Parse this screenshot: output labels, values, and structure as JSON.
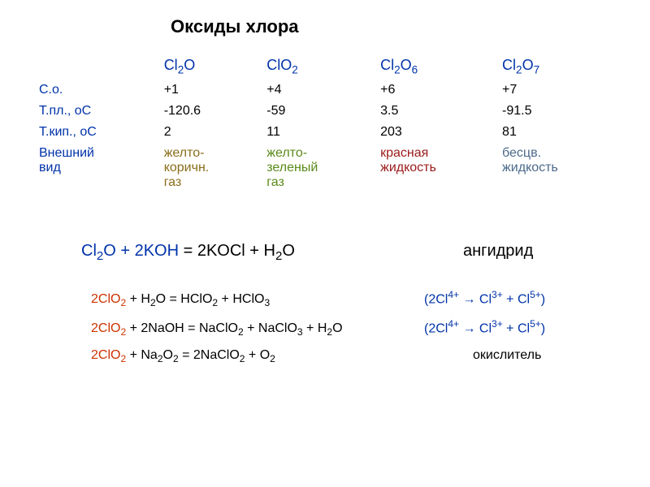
{
  "title": "Оксиды хлора",
  "table": {
    "headers": [
      "Cl2O",
      "ClO2",
      "Cl2O6",
      "Cl2O7"
    ],
    "rows": [
      {
        "label": "С.о.",
        "cells": [
          "+1",
          "+4",
          "+6",
          "+7"
        ],
        "colors": [
          "#000",
          "#000",
          "#000",
          "#000"
        ]
      },
      {
        "label": "Т.пл., оС",
        "cells": [
          "-120.6",
          "-59",
          "3.5",
          "-91.5"
        ],
        "colors": [
          "#000",
          "#000",
          "#000",
          "#000"
        ]
      },
      {
        "label": "Т.кип., оС",
        "cells": [
          "2",
          "11",
          "203",
          "81"
        ],
        "colors": [
          "#000",
          "#000",
          "#000",
          "#000"
        ]
      },
      {
        "label": "Внешний\n   вид",
        "cells": [
          "желто-\nкоричн.\nгаз",
          "желто-\nзеленый\n   газ",
          "красная\nжидкость",
          "бесцв.\nжидкость"
        ],
        "colors": [
          "#8a6d1a",
          "#5a8a1a",
          "#9a1a1a",
          "#4a6a8a"
        ]
      }
    ]
  },
  "equations": [
    {
      "lhs_html": "Cl<sub>2</sub>O + 2KOH",
      "rhs_html": "= 2KOCl + H<sub>2</sub>O",
      "label": "ангидрид",
      "redox_html": "",
      "lhs_color": "#0033aa",
      "big": true
    },
    {
      "lhs_html": "2ClO<sub>2</sub>",
      "rhs_html": "+ H<sub>2</sub>O = HClO<sub>2</sub> + HClO<sub>3</sub>",
      "label": "",
      "redox_html": "(2Cl<sup>4+</sup> → Cl<sup>3+</sup> + Cl<sup>5+</sup>)"
    },
    {
      "lhs_html": "2ClO<sub>2</sub>",
      "rhs_html": "+ 2NaOH = NaClO<sub>2</sub> + NaClO<sub>3</sub> + H<sub>2</sub>O",
      "label": "",
      "redox_html": "(2Cl<sup>4+</sup> → Cl<sup>3+</sup> + Cl<sup>5+</sup>)"
    },
    {
      "lhs_html": "2ClO<sub>2</sub>",
      "rhs_html": "+ Na<sub>2</sub>O<sub>2</sub> = 2NaClO<sub>2</sub> + O<sub>2</sub>",
      "label": "окислитель",
      "redox_html": ""
    }
  ],
  "style": {
    "accent_color": "#0033aa",
    "background": "#ffffff",
    "text_color": "#000000",
    "title_fontsize": 22,
    "body_fontsize": 16
  }
}
